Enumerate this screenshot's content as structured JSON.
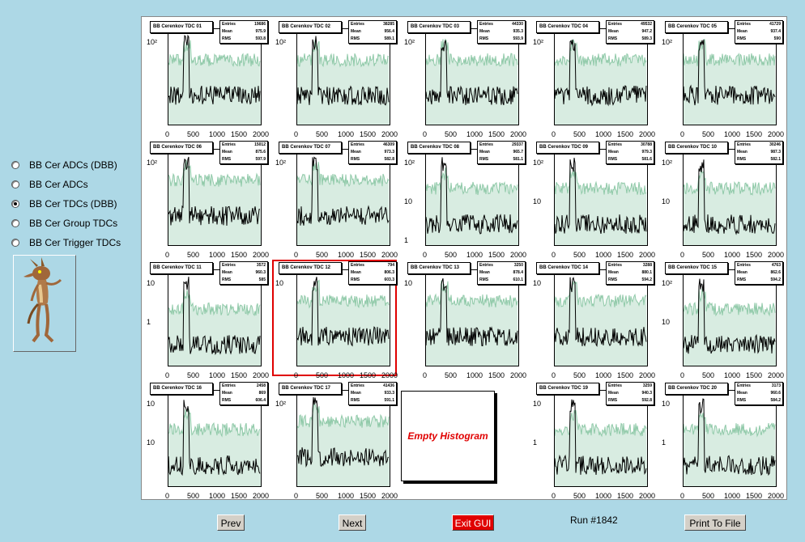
{
  "sidebar": {
    "options": [
      {
        "label": "BB Cer ADCs (DBB)",
        "selected": false
      },
      {
        "label": "BB Cer ADCs",
        "selected": false
      },
      {
        "label": "BB Cer TDCs (DBB)",
        "selected": true
      },
      {
        "label": "BB Cer Group TDCs",
        "selected": false
      },
      {
        "label": "BB Cer Trigger TDCs",
        "selected": false
      }
    ],
    "image_icon": "coyote-mascot-icon"
  },
  "histograms": [
    {
      "title": "BB Cerenkov TDC 01",
      "entries": "19686",
      "mean": "975.9",
      "rms": "593.8",
      "yticks": [
        "10²"
      ],
      "selected": false
    },
    {
      "title": "BB Cerenkov TDC 02",
      "entries": "38285",
      "mean": "956.4",
      "rms": "589.1",
      "yticks": [
        "10²"
      ],
      "selected": false
    },
    {
      "title": "BB Cerenkov TDC 03",
      "entries": "44330",
      "mean": "935.3",
      "rms": "593.9",
      "yticks": [
        "10²"
      ],
      "selected": false
    },
    {
      "title": "BB Cerenkov TDC 04",
      "entries": "49532",
      "mean": "947.2",
      "rms": "589.3",
      "yticks": [
        "10²"
      ],
      "selected": false
    },
    {
      "title": "BB Cerenkov TDC 05",
      "entries": "41729",
      "mean": "937.4",
      "rms": "590",
      "yticks": [
        "10²"
      ],
      "selected": false
    },
    {
      "title": "BB Cerenkov TDC 06",
      "entries": "15012",
      "mean": "875.6",
      "rms": "597.9",
      "yticks": [
        "10²"
      ],
      "selected": false
    },
    {
      "title": "BB Cerenkov TDC 07",
      "entries": "46309",
      "mean": "973.3",
      "rms": "582.8",
      "yticks": [
        "10²"
      ],
      "selected": false
    },
    {
      "title": "BB Cerenkov TDC 08",
      "entries": "29337",
      "mean": "965.7",
      "rms": "581.1",
      "yticks": [
        "10²",
        "10",
        "1"
      ],
      "selected": false
    },
    {
      "title": "BB Cerenkov TDC 09",
      "entries": "30788",
      "mean": "979.3",
      "rms": "581.6",
      "yticks": [
        "10²",
        "10"
      ],
      "selected": false
    },
    {
      "title": "BB Cerenkov TDC 10",
      "entries": "30246",
      "mean": "987.3",
      "rms": "582.1",
      "yticks": [
        "10²",
        "10"
      ],
      "selected": false
    },
    {
      "title": "BB Cerenkov TDC 11",
      "entries": "3572",
      "mean": "960.3",
      "rms": "585",
      "yticks": [
        "10",
        "1"
      ],
      "selected": false
    },
    {
      "title": "BB Cerenkov TDC 12",
      "entries": "794",
      "mean": "806.3",
      "rms": "603.3",
      "yticks": [
        "10"
      ],
      "selected": true
    },
    {
      "title": "BB Cerenkov TDC 13",
      "entries": "3250",
      "mean": "878.4",
      "rms": "610.1",
      "yticks": [
        "10"
      ],
      "selected": false
    },
    {
      "title": "BB Cerenkov TDC 14",
      "entries": "3288",
      "mean": "880.1",
      "rms": "594.2",
      "yticks": [
        "10"
      ],
      "selected": false
    },
    {
      "title": "BB Cerenkov TDC 15",
      "entries": "4763",
      "mean": "862.6",
      "rms": "594.2",
      "yticks": [
        "10²",
        "10"
      ],
      "selected": false
    },
    {
      "title": "BB Cerenkov TDC 16",
      "entries": "2458",
      "mean": "869",
      "rms": "606.4",
      "yticks": [
        "10",
        "10"
      ],
      "selected": false
    },
    {
      "title": "BB Cerenkov TDC 17",
      "entries": "41436",
      "mean": "933.3",
      "rms": "591.1",
      "yticks": [
        "10²"
      ],
      "selected": false
    },
    {
      "title": "",
      "entries": "",
      "mean": "",
      "rms": "",
      "yticks": [],
      "empty": true,
      "empty_label": "Empty Histogram"
    },
    {
      "title": "BB Cerenkov TDC 19",
      "entries": "3259",
      "mean": "940.3",
      "rms": "592.8",
      "yticks": [
        "10",
        "1"
      ],
      "selected": false
    },
    {
      "title": "BB Cerenkov TDC 20",
      "entries": "3173",
      "mean": "960.6",
      "rms": "584.2",
      "yticks": [
        "10",
        "1"
      ],
      "selected": false
    }
  ],
  "stat_labels": {
    "entries": "Entries",
    "mean": "Mean",
    "rms": "RMS"
  },
  "xticks": [
    "0",
    "500",
    "1000",
    "1500",
    "2000"
  ],
  "buttons": {
    "prev": "Prev",
    "next": "Next",
    "exit": "Exit GUI",
    "print": "Print To File"
  },
  "run_label": "Run #1842",
  "colors": {
    "background": "#add8e6",
    "exit": "#e00000",
    "series_a": "#000000",
    "series_b": "#8fc9a8",
    "selected_border": "#e00000"
  }
}
